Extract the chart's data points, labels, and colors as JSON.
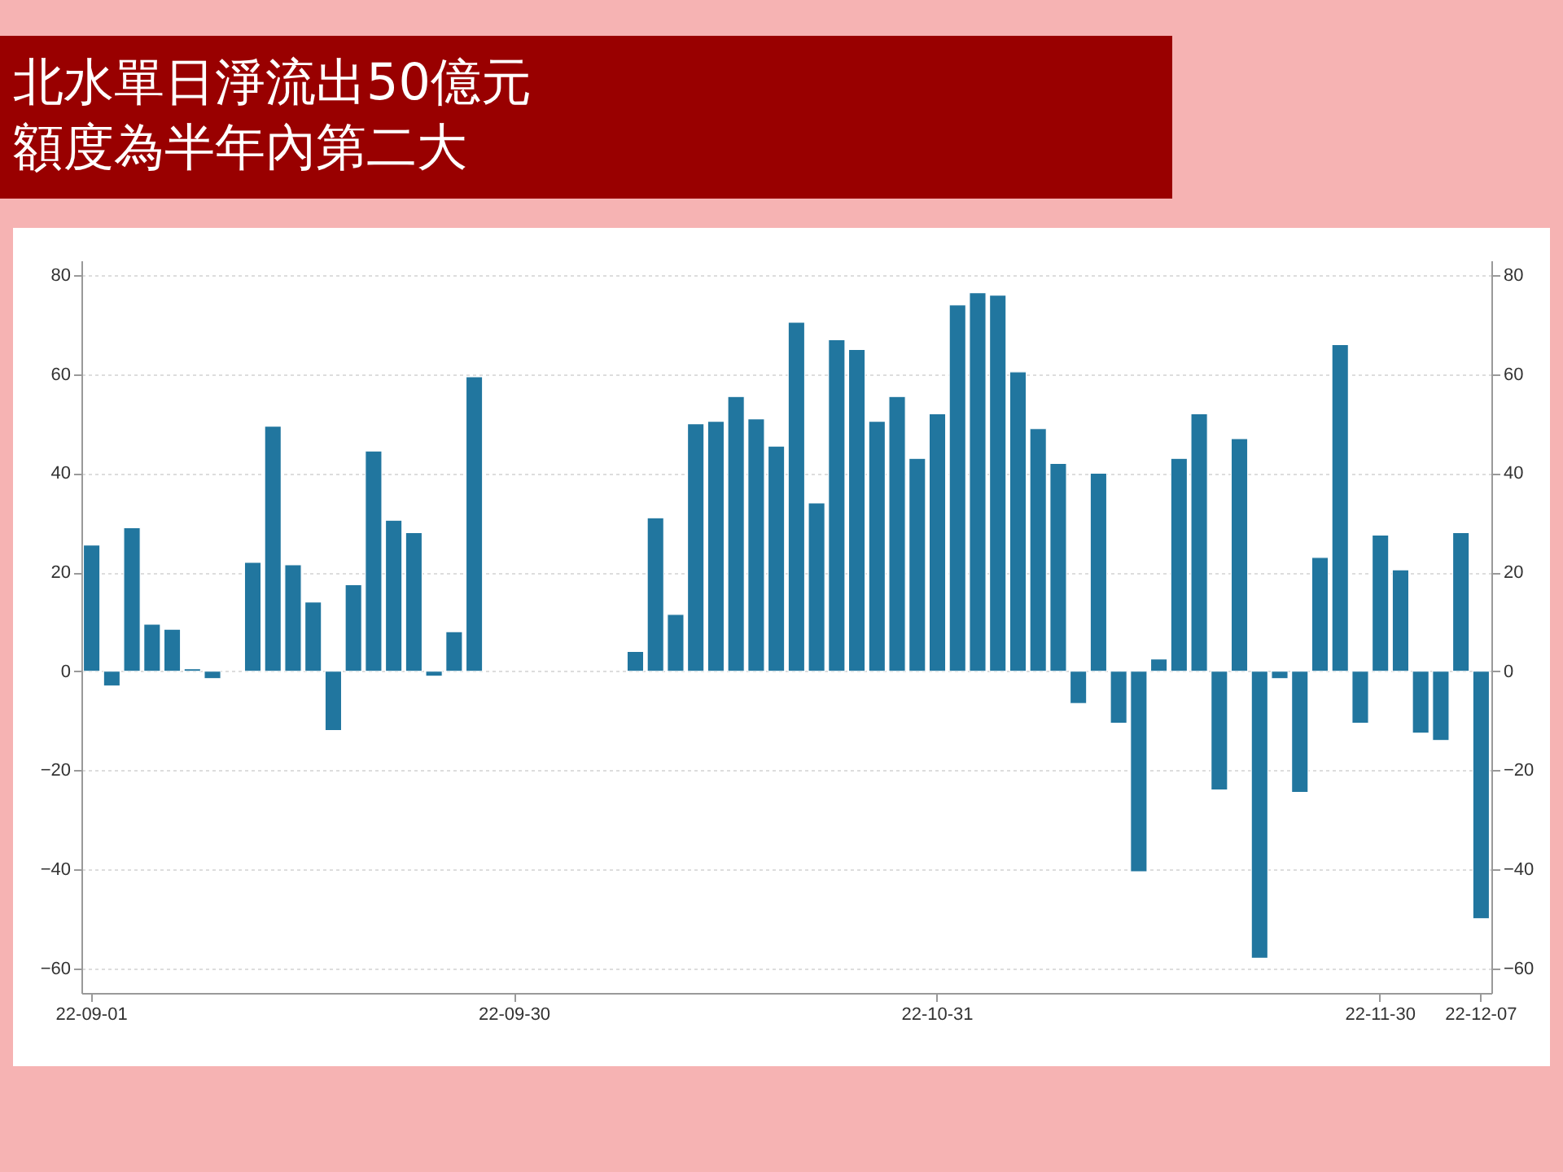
{
  "chart_data": {
    "type": "bar",
    "title": "北水單日淨流出50億元額度為半年內第二大",
    "categories": [
      "22-09-01",
      null,
      null,
      null,
      null,
      null,
      null,
      null,
      null,
      null,
      null,
      null,
      null,
      null,
      null,
      null,
      null,
      null,
      null,
      null,
      null,
      "22-09-30",
      null,
      null,
      null,
      null,
      null,
      null,
      null,
      null,
      null,
      null,
      null,
      null,
      null,
      null,
      null,
      null,
      null,
      null,
      null,
      null,
      "22-10-31",
      null,
      null,
      null,
      null,
      null,
      null,
      null,
      null,
      null,
      null,
      null,
      null,
      null,
      null,
      null,
      null,
      null,
      null,
      null,
      null,
      null,
      "22-11-30",
      null,
      null,
      null,
      null,
      "22-12-07"
    ],
    "values": [
      25.5,
      -3,
      29,
      9.5,
      8.5,
      0.5,
      -1.5,
      null,
      22,
      49.5,
      21.5,
      14,
      -12,
      17.5,
      44.5,
      30.5,
      28,
      -1,
      8,
      59.5,
      null,
      null,
      null,
      null,
      null,
      null,
      null,
      4,
      31,
      11.5,
      50,
      50.5,
      55.5,
      51,
      45.5,
      70.5,
      34,
      67,
      65,
      50.5,
      55.5,
      43,
      52,
      74,
      76.5,
      76,
      60.5,
      49,
      42,
      -6.5,
      40,
      -10.5,
      -40.5,
      2.5,
      43,
      52,
      -24,
      47,
      -58,
      -1.5,
      -24.5,
      23,
      66,
      -10.5,
      27.5,
      20.5,
      -12.5,
      -14,
      28,
      -50
    ],
    "color": "#21769f",
    "ylim": [
      -65,
      83
    ],
    "yticks": [
      -60,
      -40,
      -20,
      0,
      20,
      40,
      60,
      80
    ],
    "y2lim": [
      -65,
      83
    ],
    "y2ticks": [
      -60,
      -40,
      -20,
      0,
      20,
      40,
      60,
      80
    ],
    "grid": "y"
  }
}
